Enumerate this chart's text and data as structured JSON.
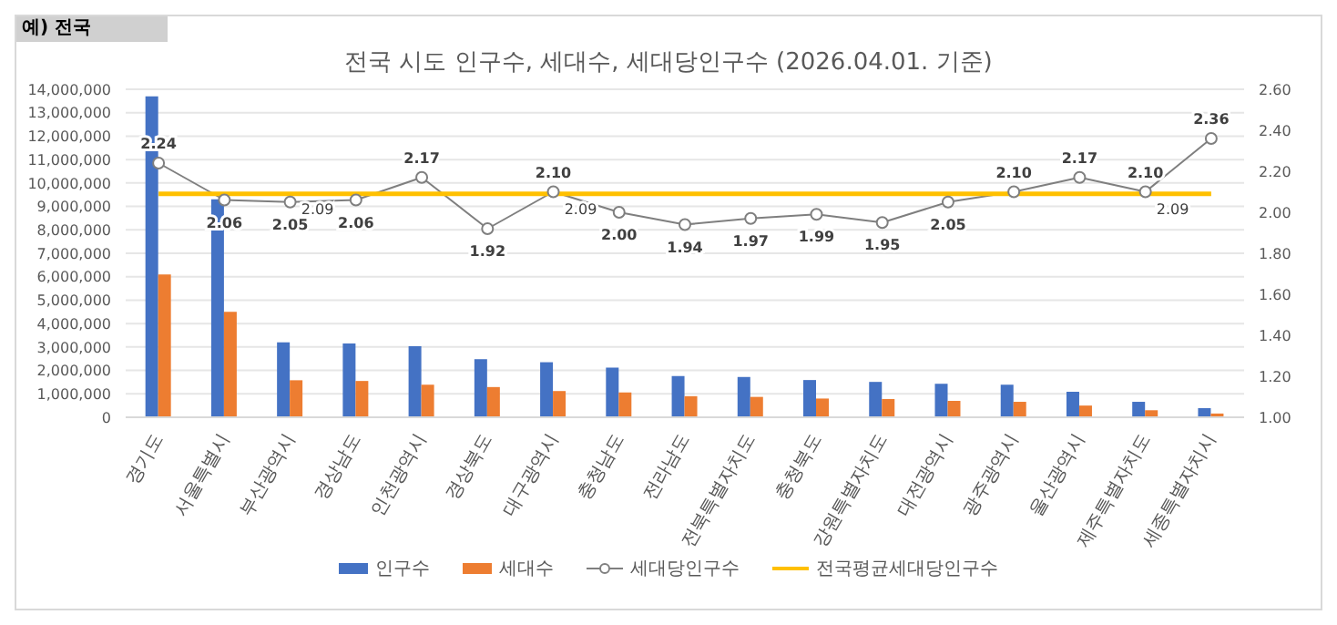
{
  "chart_data": {
    "type": "bar",
    "title": "전국 시도 인구수, 세대수, 세대당인구수 (2026.04.01. 기준)",
    "annotations": [
      "예) 전국"
    ],
    "categories": [
      "경기도",
      "서울특별시",
      "부산광역시",
      "경상남도",
      "인천광역시",
      "경상북도",
      "대구광역시",
      "충청남도",
      "전라남도",
      "전북특별자치도",
      "충청북도",
      "강원특별자치도",
      "대전광역시",
      "광주광역시",
      "울산광역시",
      "제주특별자치도",
      "세종특별자치시"
    ],
    "series": [
      {
        "name": "인구수",
        "color": "#4472c4",
        "values": [
          13700000,
          9300000,
          3200000,
          3150000,
          3030000,
          2480000,
          2350000,
          2120000,
          1760000,
          1720000,
          1590000,
          1510000,
          1430000,
          1390000,
          1090000,
          660000,
          390000
        ]
      },
      {
        "name": "세대수",
        "color": "#ed7d31",
        "values": [
          6100000,
          4500000,
          1580000,
          1550000,
          1390000,
          1290000,
          1120000,
          1060000,
          900000,
          870000,
          800000,
          780000,
          700000,
          660000,
          500000,
          300000,
          160000
        ]
      },
      {
        "name": "세대당인구수",
        "type": "line",
        "axis": "y2",
        "color": "#7f7f7f",
        "marker": "circle",
        "values": [
          2.24,
          2.06,
          2.05,
          2.06,
          2.17,
          1.92,
          2.1,
          2.0,
          1.94,
          1.97,
          1.99,
          1.95,
          2.05,
          2.1,
          2.17,
          2.1,
          2.36
        ],
        "value_labels": [
          "2.24",
          "2.06",
          "2.05",
          "2.06",
          "2.17",
          "1.92",
          "2.10",
          "2.00",
          "1.94",
          "1.97",
          "1.99",
          "1.95",
          "2.05",
          "2.10",
          "2.17",
          "2.10",
          "2.36"
        ]
      },
      {
        "name": "전국평균세대당인구수",
        "type": "line",
        "axis": "y2",
        "color": "#ffc000",
        "marker": "none",
        "values": [
          2.09,
          2.09,
          2.09,
          2.09,
          2.09,
          2.09,
          2.09,
          2.09,
          2.09,
          2.09,
          2.09,
          2.09,
          2.09,
          2.09,
          2.09,
          2.09,
          2.09
        ],
        "value_labels": [
          null,
          null,
          "2.09",
          null,
          null,
          null,
          "2.09",
          null,
          null,
          null,
          null,
          null,
          null,
          null,
          null,
          "2.09",
          null
        ]
      }
    ],
    "ylim": [
      0,
      14000000
    ],
    "yticks": [
      {
        "value": 0,
        "label": "0"
      },
      {
        "value": 1000000,
        "label": "1,000,000"
      },
      {
        "value": 2000000,
        "label": "2,000,000"
      },
      {
        "value": 3000000,
        "label": "3,000,000"
      },
      {
        "value": 4000000,
        "label": "4,000,000"
      },
      {
        "value": 5000000,
        "label": "5,000,000"
      },
      {
        "value": 6000000,
        "label": "6,000,000"
      },
      {
        "value": 7000000,
        "label": "7,000,000"
      },
      {
        "value": 8000000,
        "label": "8,000,000"
      },
      {
        "value": 9000000,
        "label": "9,000,000"
      },
      {
        "value": 10000000,
        "label": "10,000,000"
      },
      {
        "value": 11000000,
        "label": "11,000,000"
      },
      {
        "value": 12000000,
        "label": "12,000,000"
      },
      {
        "value": 13000000,
        "label": "13,000,000"
      },
      {
        "value": 14000000,
        "label": "14,000,000"
      }
    ],
    "y2lim": [
      1.0,
      2.6
    ],
    "y2ticks": [
      {
        "value": 1.0,
        "label": "1.00"
      },
      {
        "value": 1.2,
        "label": "1.20"
      },
      {
        "value": 1.4,
        "label": "1.40"
      },
      {
        "value": 1.6,
        "label": "1.60"
      },
      {
        "value": 1.8,
        "label": "1.80"
      },
      {
        "value": 2.0,
        "label": "2.00"
      },
      {
        "value": 2.2,
        "label": "2.20"
      },
      {
        "value": 2.4,
        "label": "2.40"
      },
      {
        "value": 2.6,
        "label": "2.60"
      }
    ],
    "grid": "y",
    "legend": "bottom"
  }
}
